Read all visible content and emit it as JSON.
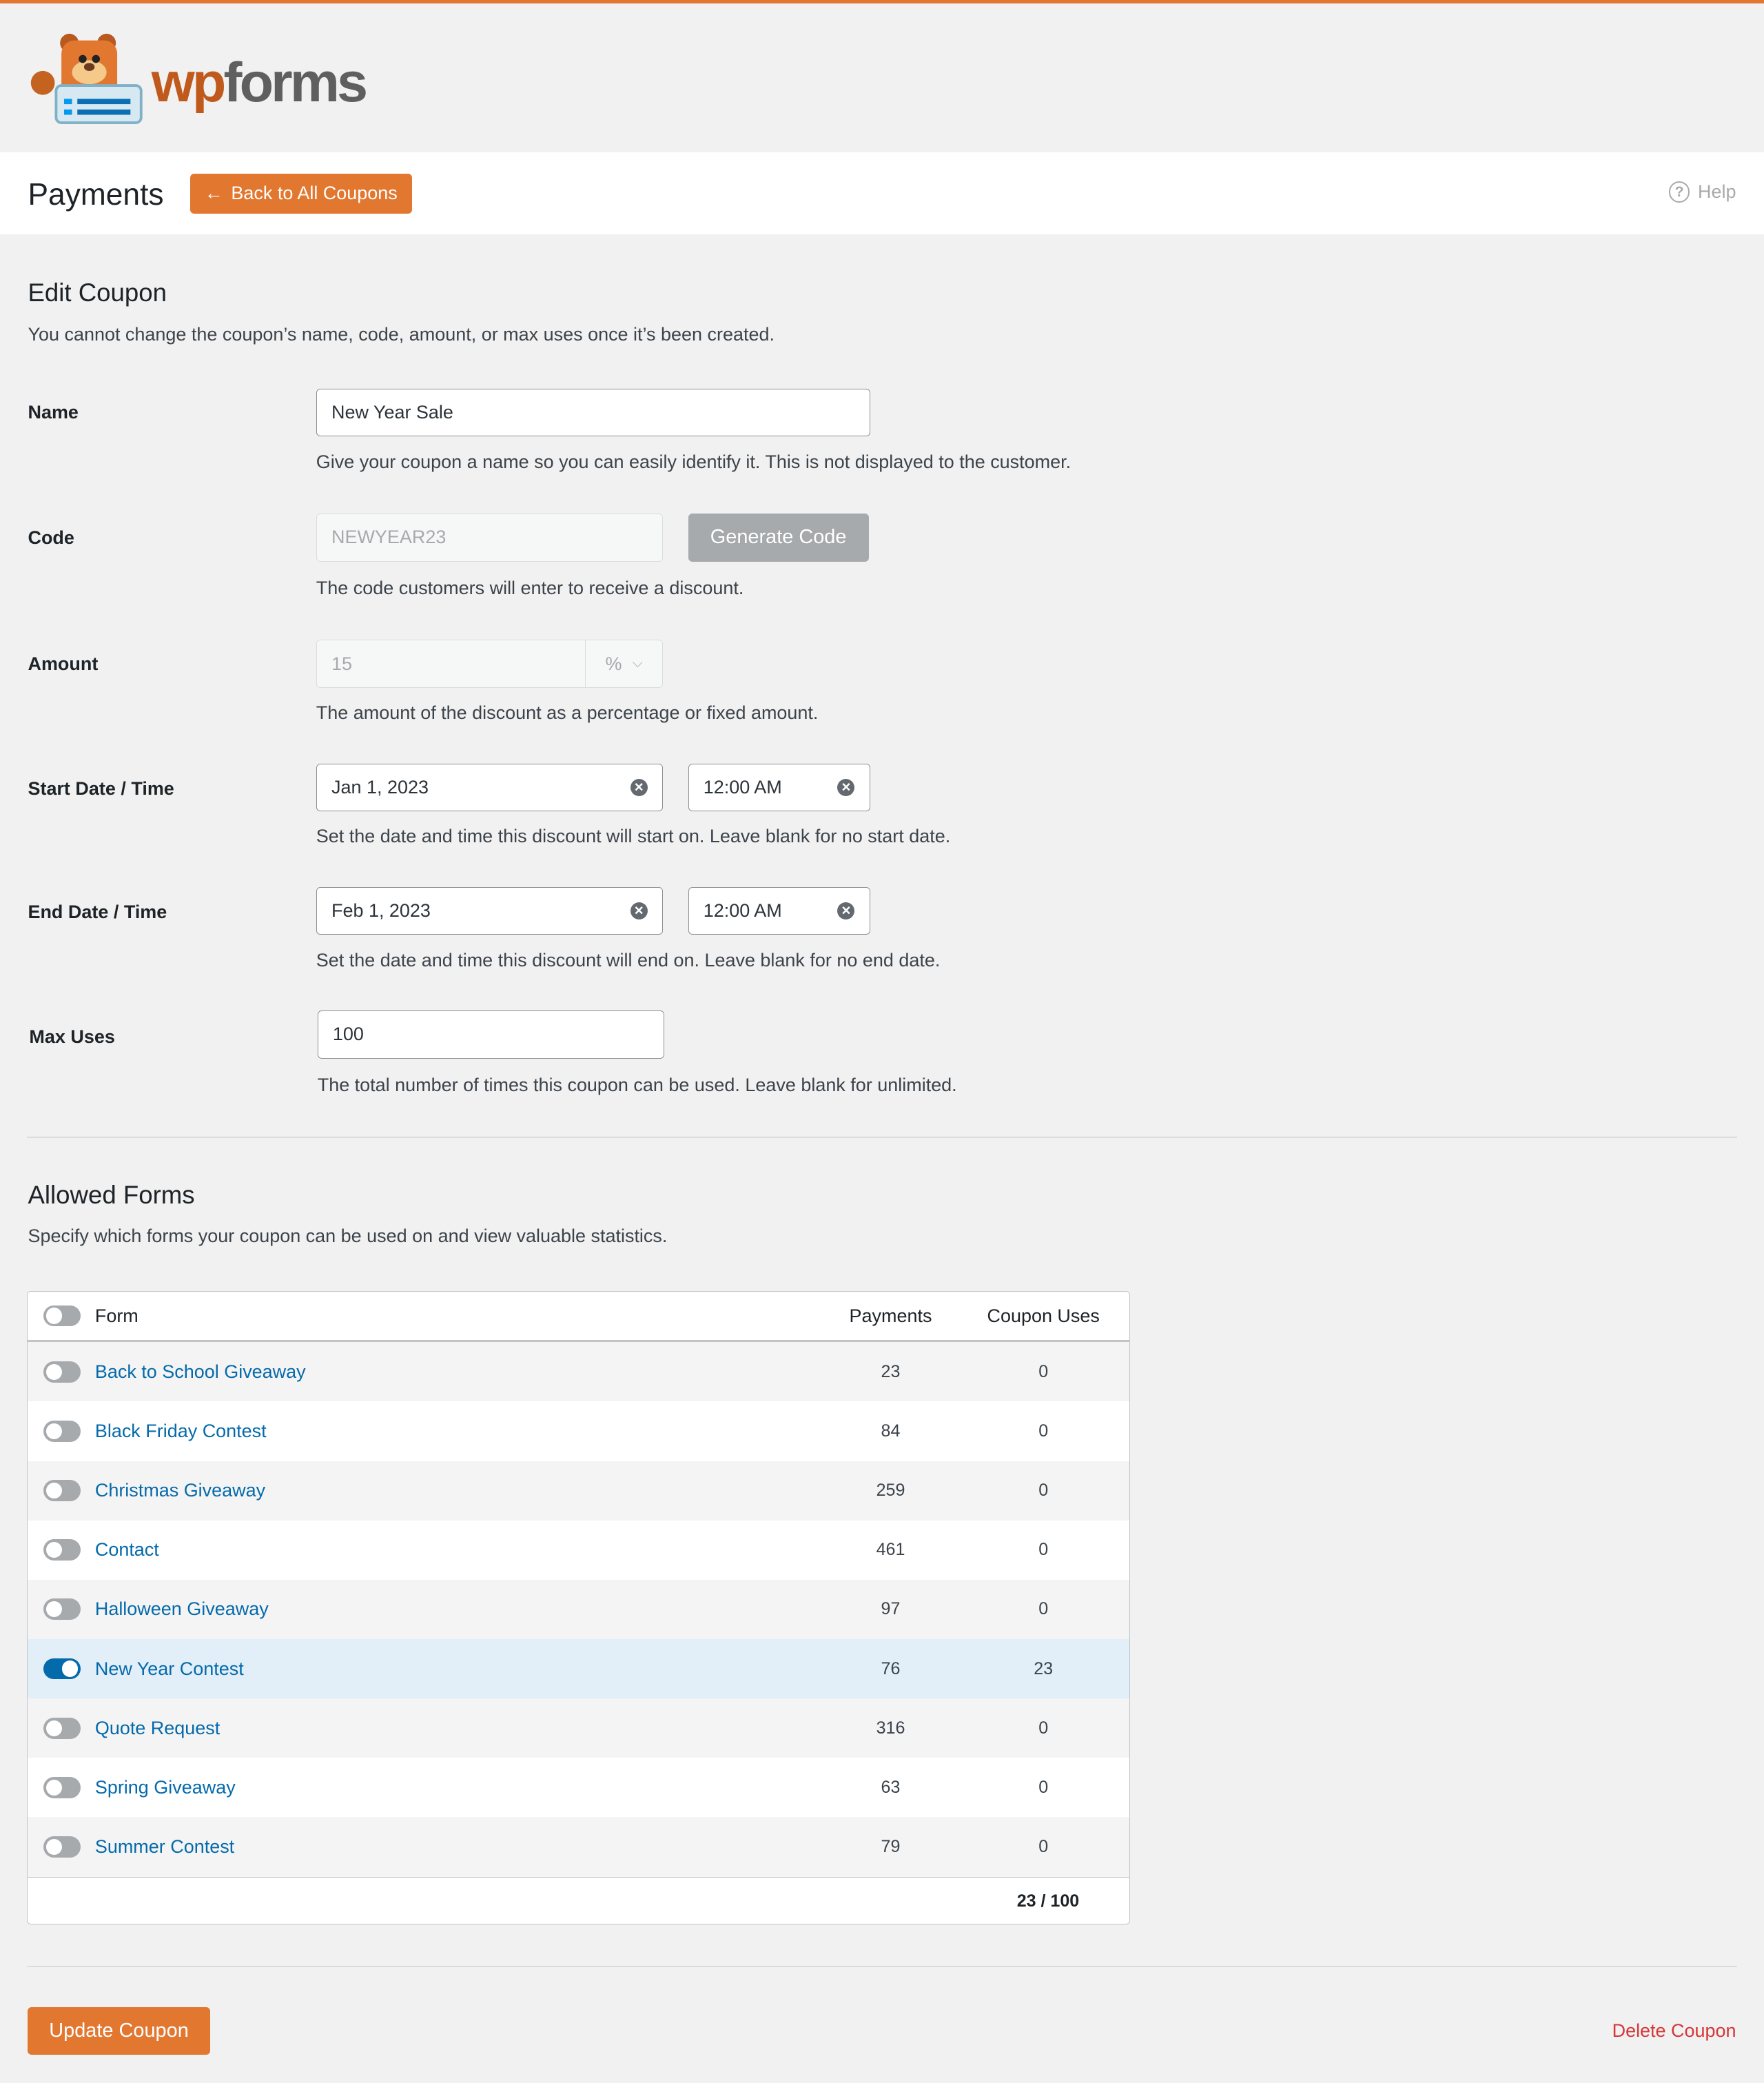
{
  "brand": {
    "logo_text": "wpforms",
    "accent": "#e27730"
  },
  "header": {
    "title": "Payments",
    "back_button": "Back to All Coupons",
    "help": "Help"
  },
  "edit": {
    "title": "Edit Coupon",
    "description": "You cannot change the coupon’s name, code, amount, or max uses once it’s been created.",
    "name": {
      "label": "Name",
      "value": "New Year Sale",
      "help": "Give your coupon a name so you can easily identify it. This is not displayed to the customer."
    },
    "code": {
      "label": "Code",
      "value": "NEWYEAR23",
      "button": "Generate Code",
      "help": "The code customers will enter to receive a discount."
    },
    "amount": {
      "label": "Amount",
      "value": "15",
      "unit": "%",
      "help": "The amount of the discount as a percentage or fixed amount."
    },
    "start": {
      "label": "Start Date / Time",
      "date": "Jan 1, 2023",
      "time": "12:00 AM",
      "help": "Set the date and time this discount will start on. Leave blank for no start date."
    },
    "end": {
      "label": "End Date / Time",
      "date": "Feb 1, 2023",
      "time": "12:00 AM",
      "help": "Set the date and time this discount will end on. Leave blank for no end date."
    },
    "max": {
      "label": "Max Uses",
      "value": "100",
      "help": "The total number of times this coupon can be used. Leave blank for unlimited."
    }
  },
  "allowed": {
    "title": "Allowed Forms",
    "description": "Specify which forms your coupon can be used on and view valuable statistics.",
    "columns": [
      "Form",
      "Payments",
      "Coupon Uses"
    ],
    "rows": [
      {
        "name": "Back to School Giveaway",
        "payments": "23",
        "uses": "0",
        "enabled": false
      },
      {
        "name": "Black Friday Contest",
        "payments": "84",
        "uses": "0",
        "enabled": false
      },
      {
        "name": "Christmas Giveaway",
        "payments": "259",
        "uses": "0",
        "enabled": false
      },
      {
        "name": "Contact",
        "payments": "461",
        "uses": "0",
        "enabled": false
      },
      {
        "name": "Halloween Giveaway",
        "payments": "97",
        "uses": "0",
        "enabled": false
      },
      {
        "name": "New Year Contest",
        "payments": "76",
        "uses": "23",
        "enabled": true
      },
      {
        "name": "Quote Request",
        "payments": "316",
        "uses": "0",
        "enabled": false
      },
      {
        "name": "Spring Giveaway",
        "payments": "63",
        "uses": "0",
        "enabled": false
      },
      {
        "name": "Summer Contest",
        "payments": "79",
        "uses": "0",
        "enabled": false
      }
    ],
    "total": "23 / 100"
  },
  "footer": {
    "update": "Update Coupon",
    "delete": "Delete Coupon"
  }
}
